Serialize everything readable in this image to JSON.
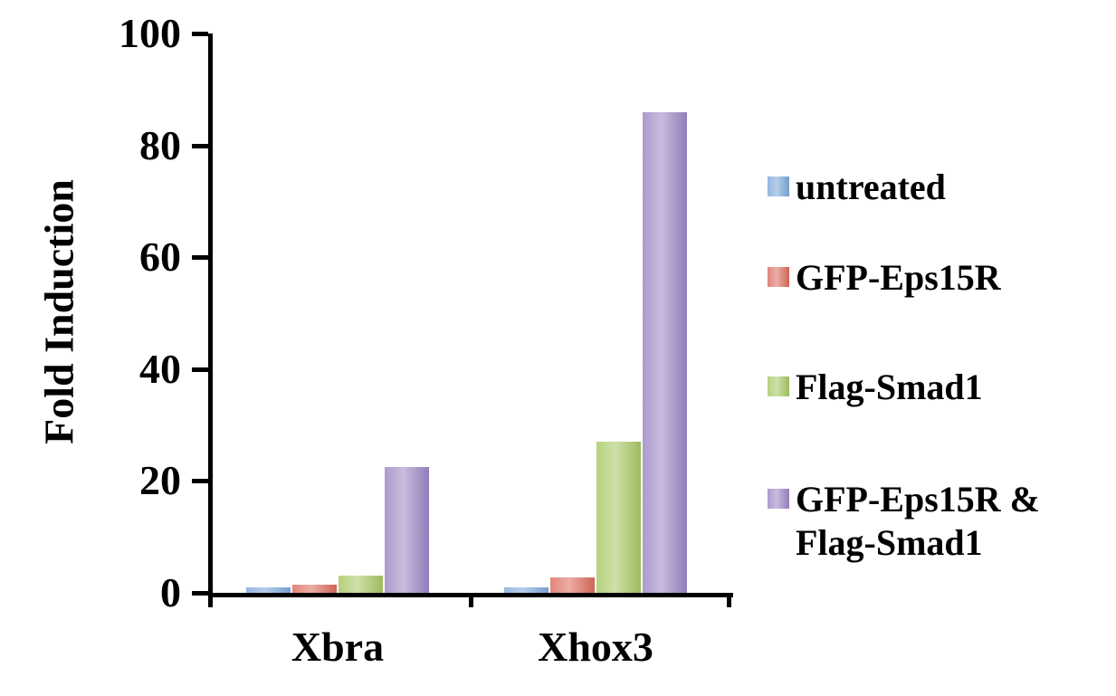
{
  "chart_data": {
    "type": "bar",
    "title": "",
    "xlabel": "",
    "ylabel": "Fold Induction",
    "ylim": [
      0,
      100
    ],
    "yticks": [
      0,
      20,
      40,
      60,
      80,
      100
    ],
    "grid": false,
    "categories": [
      "Xbra",
      "Xhox3"
    ],
    "series": [
      {
        "name": "untreated",
        "color": "#7BA7D9",
        "values": [
          1,
          1
        ]
      },
      {
        "name": "GFP-Eps15R",
        "color": "#DB6A5C",
        "values": [
          1.5,
          2.8
        ]
      },
      {
        "name": "Flag-Smad1",
        "color": "#A6C763",
        "values": [
          3,
          27
        ]
      },
      {
        "name": "GFP-Eps15R & Flag-Smad1",
        "color": "#9B84C3",
        "values": [
          22.5,
          86
        ]
      }
    ],
    "legend": {
      "position": "right",
      "entries": [
        {
          "text": " untreated"
        },
        {
          "text": "GFP-Eps15R"
        },
        {
          "text": "Flag-Smad1"
        },
        {
          "text": "GFP-Eps15R &\n Flag-Smad1"
        }
      ]
    }
  }
}
